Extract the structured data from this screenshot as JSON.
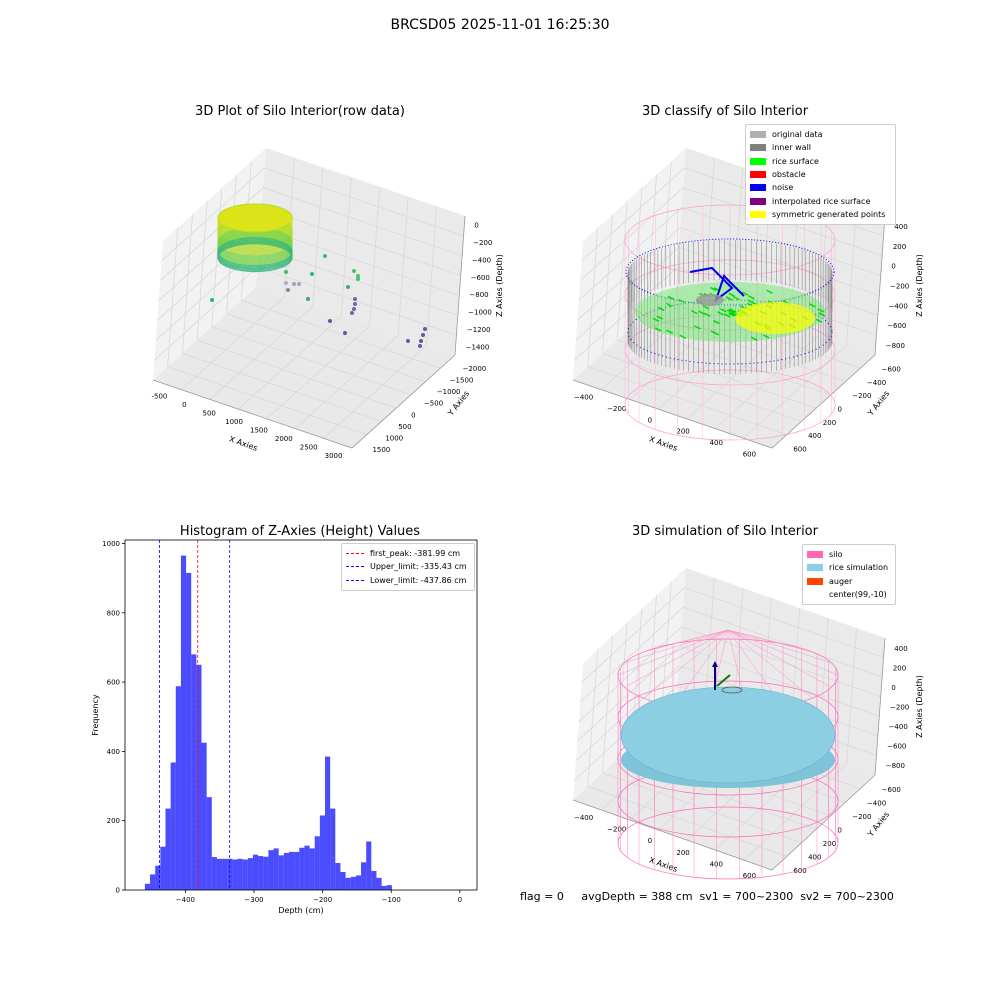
{
  "suptitle": "BRCSD05 2025-11-01 16:25:30",
  "panel1": {
    "title": "3D Plot of Silo Interior(row data)",
    "xlabel": "X Axies",
    "ylabel": "Y Axies",
    "zlabel": "Z Axies (Depth)",
    "xticks": [
      "-500",
      "0",
      "500",
      "1000",
      "1500",
      "2000",
      "2500",
      "3000"
    ],
    "yticks": [
      "1500",
      "1000",
      "500",
      "0",
      "−500",
      "−1000",
      "−1500",
      "−2000"
    ],
    "zticks": [
      "0",
      "−200",
      "−400",
      "−600",
      "−800",
      "−1000",
      "−1200",
      "−1400"
    ]
  },
  "panel2": {
    "title": "3D classify of Silo Interior",
    "xlabel": "X Axies",
    "ylabel": "Y Axies",
    "zlabel": "Z Axies (Depth)",
    "xticks": [
      "−400",
      "−200",
      "0",
      "200",
      "400",
      "600"
    ],
    "yticks": [
      "600",
      "400",
      "200",
      "0",
      "−200",
      "−400",
      "−600"
    ],
    "zticks": [
      "400",
      "200",
      "0",
      "−200",
      "−400",
      "−600",
      "−800"
    ],
    "legend": [
      {
        "label": "original data",
        "color": "#b0b0b0"
      },
      {
        "label": "inner wall",
        "color": "#808080"
      },
      {
        "label": "rice surface",
        "color": "#00ff00"
      },
      {
        "label": "obstacle",
        "color": "#ff0000"
      },
      {
        "label": "noise",
        "color": "#0000ee"
      },
      {
        "label": "interpolated rice surface",
        "color": "#800080"
      },
      {
        "label": "symmetric generated points",
        "color": "#ffff00"
      }
    ]
  },
  "panel4": {
    "title": "3D simulation of Silo Interior",
    "xlabel": "X Axies",
    "ylabel": "Y Axies",
    "zlabel": "Z Axies (Depth)",
    "xticks": [
      "−400",
      "−200",
      "0",
      "200",
      "400",
      "600"
    ],
    "yticks": [
      "600",
      "400",
      "200",
      "0",
      "−200",
      "−400",
      "−600"
    ],
    "zticks": [
      "400",
      "200",
      "0",
      "−200",
      "−400",
      "−600",
      "−800"
    ],
    "legend": [
      {
        "label": "silo",
        "color": "#ff69b4"
      },
      {
        "label": "rice simulation",
        "color": "#87ceeb"
      },
      {
        "label": "auger",
        "color": "#ff4500"
      },
      {
        "label": "center(99,-10)",
        "color": "#ffffff"
      }
    ]
  },
  "status_line": "flag = 0     avgDepth = 388 cm  sv1 = 700~2300  sv2 = 700~2300",
  "chart_data": {
    "type": "bar",
    "title": "Histogram of Z-Axies (Height) Values",
    "xlabel": "Depth (cm)",
    "ylabel": "Frequency",
    "xlim": [
      -488,
      25
    ],
    "ylim": [
      0,
      1010
    ],
    "xticks": [
      -400,
      -300,
      -200,
      -100,
      0
    ],
    "yticks": [
      0,
      200,
      400,
      600,
      800,
      1000
    ],
    "bin_start": -459,
    "bin_width": 7.5,
    "values": [
      18,
      45,
      70,
      125,
      235,
      368,
      588,
      965,
      915,
      680,
      650,
      425,
      268,
      95,
      90,
      90,
      90,
      88,
      90,
      88,
      92,
      102,
      98,
      96,
      115,
      120,
      100,
      107,
      110,
      110,
      122,
      128,
      120,
      155,
      215,
      385,
      235,
      78,
      52,
      35,
      38,
      42,
      80,
      140,
      55,
      35,
      12,
      14
    ],
    "lines": [
      {
        "label": "first_peak: -381.99 cm",
        "x": -381.99,
        "color": "#ff0000"
      },
      {
        "label": "Upper_limit: -335.43 cm",
        "x": -335.43,
        "color": "#0000ff"
      },
      {
        "label": "Lower_limit: -437.86 cm",
        "x": -437.86,
        "color": "#0000ff"
      }
    ],
    "bar_color": "#0000ff"
  }
}
